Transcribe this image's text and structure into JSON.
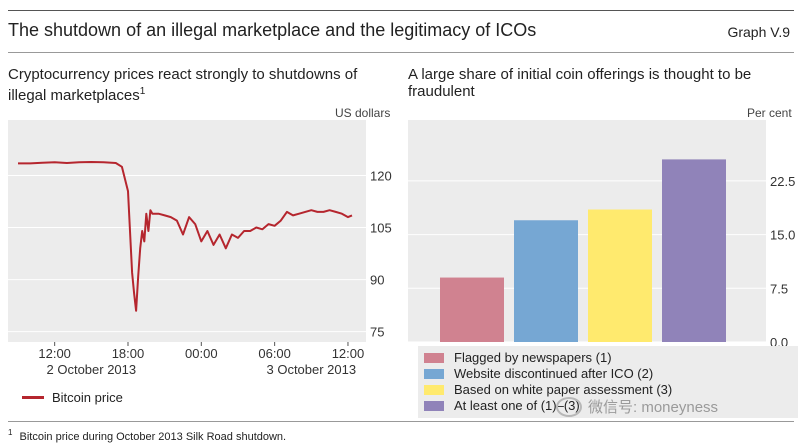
{
  "header": {
    "title": "The shutdown of an illegal marketplace and the legitimacy of ICOs",
    "graph_number": "Graph V.9"
  },
  "left_panel": {
    "title_line1": "Cryptocurrency prices react strongly to shutdowns of",
    "title_line2": "illegal marketplaces",
    "title_sup": "1",
    "unit": "US dollars",
    "date_labels": [
      "2 October 2013",
      "3 October 2013"
    ],
    "legend_label": "Bitcoin price"
  },
  "right_panel": {
    "title_line1": "A large share of initial coin offerings is thought to be",
    "title_line2": "fraudulent",
    "unit": "Per cent"
  },
  "footnote": {
    "marker": "1",
    "text": "Bitcoin price during October 2013 Silk Road shutdown."
  },
  "watermark": {
    "text": "微信号: moneyness"
  },
  "colors": {
    "line": "#b5262e",
    "bars": [
      "#d08290",
      "#76a7d3",
      "#ffea6e",
      "#9083b9"
    ],
    "panel_bg": "#ececec"
  },
  "chart_data": [
    {
      "type": "line",
      "series": [
        {
          "name": "Bitcoin price",
          "x": [
            "09:00",
            "10:00",
            "11:00",
            "12:00",
            "13:00",
            "14:00",
            "15:00",
            "16:00",
            "17:00",
            "17:30",
            "18:00",
            "18:10",
            "18:20",
            "18:30",
            "18:40",
            "18:50",
            "19:00",
            "19:10",
            "19:20",
            "19:30",
            "19:40",
            "19:50",
            "20:00",
            "20:30",
            "21:00",
            "21:30",
            "22:00",
            "22:30",
            "23:00",
            "23:30",
            "00:00",
            "00:30",
            "01:00",
            "01:30",
            "02:00",
            "02:30",
            "03:00",
            "03:30",
            "04:00",
            "04:30",
            "05:00",
            "05:30",
            "06:00",
            "06:30",
            "07:00",
            "07:30",
            "08:00",
            "08:30",
            "09:00",
            "09:30",
            "10:00",
            "10:30",
            "11:00",
            "11:30",
            "12:00",
            "12:20"
          ],
          "values": [
            123.5,
            123.5,
            123.7,
            123.8,
            123.6,
            123.8,
            123.9,
            123.8,
            123.6,
            122.5,
            115.5,
            104,
            92,
            86,
            81,
            91,
            99,
            104,
            101,
            109,
            104,
            110,
            109,
            109,
            108.5,
            108,
            107,
            103,
            108,
            106,
            101,
            104,
            100,
            103,
            99,
            103,
            102,
            104,
            104,
            105,
            104.5,
            106,
            105.5,
            107,
            109.5,
            108.5,
            109,
            109.5,
            110,
            109.5,
            109.5,
            110,
            109.5,
            109,
            108,
            108.5
          ]
        }
      ],
      "xticks": [
        "12:00",
        "18:00",
        "00:00",
        "06:00",
        "12:00"
      ],
      "date_labels": [
        "2 October 2013",
        "3 October 2013"
      ],
      "yticks": [
        75,
        90,
        105,
        120
      ],
      "ylim": [
        72,
        136
      ],
      "ylabel": "US dollars",
      "legend": "bottom-left"
    },
    {
      "type": "bar",
      "categories": [
        "Flagged by newspapers (1)",
        "Website discontinued after ICO (2)",
        "Based on white paper assessment (3)",
        "At least one of (1)–(3)"
      ],
      "values": [
        9.0,
        17.0,
        18.5,
        25.5
      ],
      "yticks": [
        0.0,
        7.5,
        15.0,
        22.5
      ],
      "ylim": [
        0,
        31
      ],
      "ylabel": "Per cent",
      "legend": "bottom"
    }
  ]
}
